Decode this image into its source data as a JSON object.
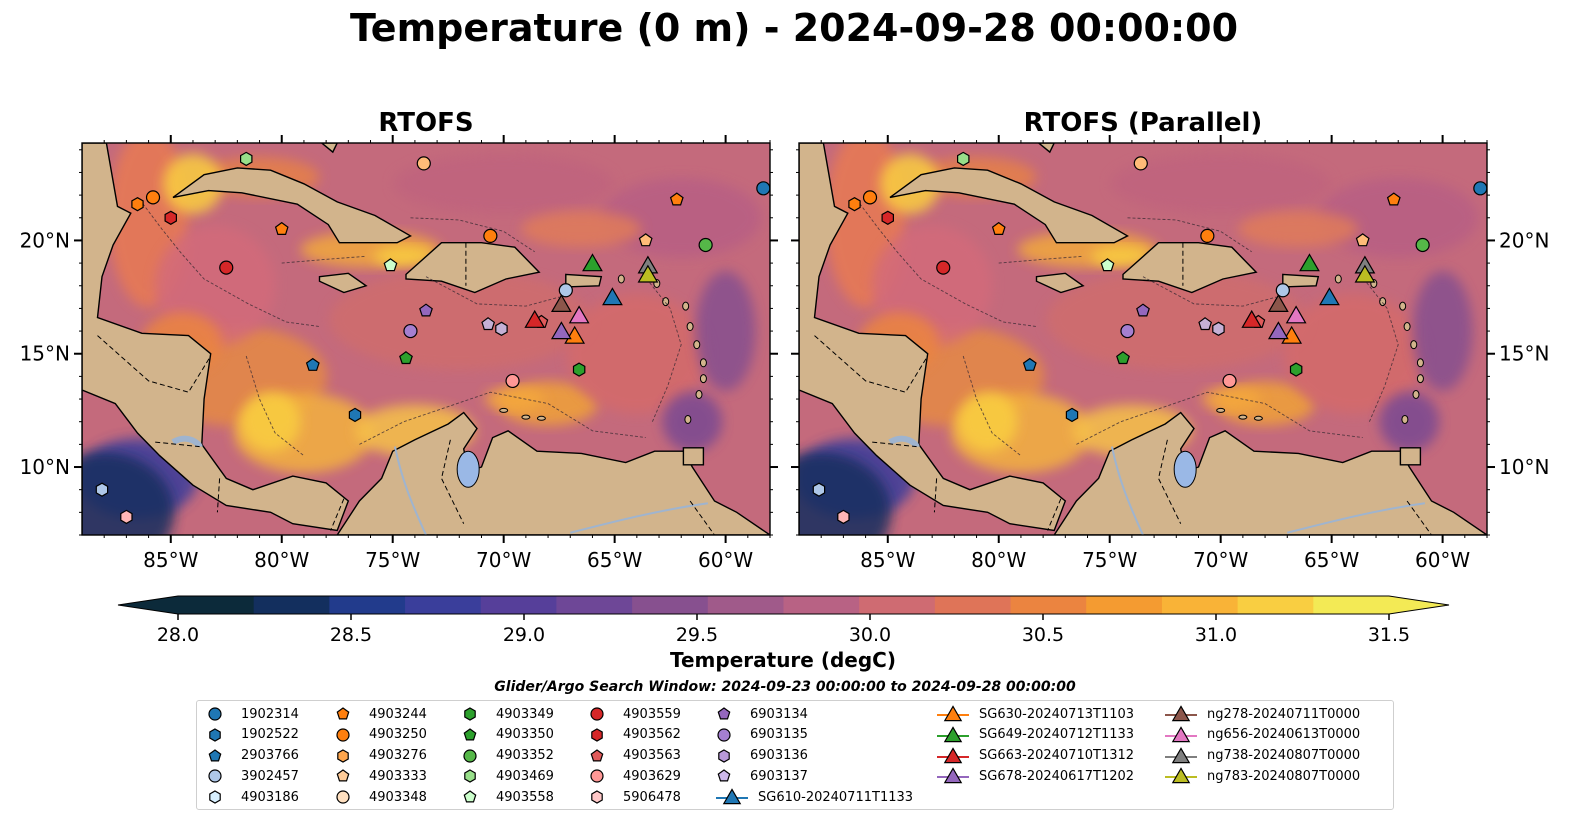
{
  "title": "Temperature (0 m) - 2024-09-28 00:00:00",
  "panels": [
    {
      "title": "RTOFS"
    },
    {
      "title": "RTOFS (Parallel)"
    }
  ],
  "colors": {
    "land": "#d2b48c",
    "lake": "#9ab8e6",
    "colormap": [
      "#0c2a3a",
      "#132f5e",
      "#223b8c",
      "#3a3e9b",
      "#563f9a",
      "#6e4797",
      "#87508f",
      "#a05a8a",
      "#b86284",
      "#cf6b72",
      "#df7458",
      "#eb8440",
      "#f49b31",
      "#f9b337",
      "#f9ce41",
      "#f3ea55"
    ]
  },
  "colorbar": {
    "label": "Temperature (degC)",
    "ticks": [
      "28.0",
      "28.5",
      "29.0",
      "29.5",
      "30.0",
      "30.5",
      "31.0",
      "31.5"
    ],
    "min": 28.0,
    "max": 31.5,
    "levels": 16,
    "extend": "both"
  },
  "search_window": "Glider/Argo Search Window: 2024-09-23 00:00:00 to 2024-09-28 00:00:00",
  "axes": {
    "x_ticks": [
      "85°W",
      "80°W",
      "75°W",
      "70°W",
      "65°W",
      "60°W"
    ],
    "y_ticks": [
      "20°N",
      "15°N",
      "10°N"
    ]
  },
  "chart_data": {
    "type": "scatter",
    "x_label": "",
    "y_label": "",
    "x_range": [
      -89,
      -58
    ],
    "y_range": [
      7,
      24.3
    ],
    "x_tick_values": [
      -85,
      -80,
      -75,
      -70,
      -65,
      -60
    ],
    "y_tick_values": [
      20,
      15,
      10
    ],
    "grid": false,
    "legend_position": "bottom",
    "argo_floats": [
      {
        "id": "1902314",
        "marker": "circle",
        "color": "#1f77b4",
        "lon": -58.3,
        "lat": 22.3
      },
      {
        "id": "1902522",
        "marker": "hexagon",
        "color": "#1f77b4",
        "lon": -76.7,
        "lat": 12.3
      },
      {
        "id": "2903766",
        "marker": "pentagon",
        "color": "#1f77b4",
        "lon": -78.6,
        "lat": 14.5
      },
      {
        "id": "3902457",
        "marker": "circle",
        "color": "#aec7e8",
        "lon": -67.2,
        "lat": 17.8
      },
      {
        "id": "4903186",
        "marker": "hexagon",
        "color": "#aec7e8",
        "lon": -88.1,
        "lat": 9.0
      },
      {
        "id": "4903244",
        "marker": "pentagon",
        "color": "#ff7f0e",
        "lon": -62.2,
        "lat": 21.8
      },
      {
        "id": "4903250",
        "marker": "circle",
        "color": "#ff7f0e",
        "lon": -85.8,
        "lat": 21.9
      },
      {
        "id": "4903276",
        "marker": "hexagon",
        "color": "#ff7f0e",
        "lon": -86.5,
        "lat": 21.6
      },
      {
        "id": "4903333",
        "marker": "pentagon",
        "color": "#ffbb78",
        "lon": -63.6,
        "lat": 20.0
      },
      {
        "id": "4903348",
        "marker": "circle",
        "color": "#ffbb78",
        "lon": -73.6,
        "lat": 23.4
      },
      {
        "id": "4903349",
        "marker": "hexagon",
        "color": "#2ca02c",
        "lon": -66.6,
        "lat": 14.3
      },
      {
        "id": "4903350",
        "marker": "pentagon",
        "color": "#2ca02c",
        "lon": -74.4,
        "lat": 14.8
      },
      {
        "id": "4903352",
        "marker": "circle",
        "color": "#55b748",
        "lon": -60.9,
        "lat": 19.8
      },
      {
        "id": "4903469",
        "marker": "hexagon",
        "color": "#98df8a",
        "lon": -81.6,
        "lat": 23.6
      },
      {
        "id": "4903558",
        "marker": "pentagon",
        "color": "#ccffcc",
        "lon": -75.1,
        "lat": 18.9
      },
      {
        "id": "4903559",
        "marker": "circle",
        "color": "#d62728",
        "lon": -82.5,
        "lat": 18.8
      },
      {
        "id": "4903562",
        "marker": "hexagon",
        "color": "#d62728",
        "lon": -85.0,
        "lat": 21.0
      },
      {
        "id": "4903563",
        "marker": "pentagon",
        "color": "#e05a5a",
        "lon": -68.3,
        "lat": 16.4
      },
      {
        "id": "4903629",
        "marker": "circle",
        "color": "#ff9896",
        "lon": -69.6,
        "lat": 13.8
      },
      {
        "id": "5906478",
        "marker": "hexagon",
        "color": "#ffb6b6",
        "lon": -87.0,
        "lat": 7.8
      },
      {
        "id": "6903134",
        "marker": "pentagon",
        "color": "#9467bd",
        "lon": -73.5,
        "lat": 16.9
      },
      {
        "id": "6903135",
        "marker": "circle",
        "color": "#a57fd0",
        "lon": -74.2,
        "lat": 16.0
      },
      {
        "id": "6903136",
        "marker": "hexagon",
        "color": "#c5b0d5",
        "lon": -70.1,
        "lat": 16.1
      },
      {
        "id": "6903137",
        "marker": "pentagon",
        "color": "#c5b0d5",
        "lon": -70.7,
        "lat": 16.3
      },
      {
        "id": "4903349b",
        "marker": "circle",
        "color": "#ff7f0e",
        "lon": -70.6,
        "lat": 20.2,
        "hidden_label": true
      },
      {
        "id": "4903244b",
        "marker": "pentagon",
        "color": "#ff7f0e",
        "lon": -80.0,
        "lat": 20.5,
        "hidden_label": true
      }
    ],
    "gliders": [
      {
        "id": "SG610-20240711T1133",
        "color": "#1f77b4",
        "lon": -65.1,
        "lat": 17.5
      },
      {
        "id": "SG630-20240713T1103",
        "color": "#ff7f0e",
        "lon": -66.8,
        "lat": 15.8
      },
      {
        "id": "SG649-20240712T1133",
        "color": "#2ca02c",
        "lon": -66.0,
        "lat": 19.0
      },
      {
        "id": "SG663-20240710T1312",
        "color": "#d62728",
        "lon": -68.6,
        "lat": 16.5
      },
      {
        "id": "SG678-20240617T1202",
        "color": "#9467bd",
        "lon": -67.4,
        "lat": 16.0
      },
      {
        "id": "ng278-20240711T0000",
        "color": "#8c564b",
        "lon": -67.4,
        "lat": 17.2
      },
      {
        "id": "ng656-20240613T0000",
        "color": "#e377c2",
        "lon": -66.6,
        "lat": 16.7
      },
      {
        "id": "ng738-20240807T0000",
        "color": "#7f7f7f",
        "lon": -63.5,
        "lat": 18.9
      },
      {
        "id": "ng783-20240807T0000",
        "color": "#bcbd22",
        "lon": -63.5,
        "lat": 18.5
      }
    ]
  },
  "legend": {
    "columns": [
      [
        {
          "label": "1902314",
          "marker": "circle",
          "color": "#1f77b4"
        },
        {
          "label": "1902522",
          "marker": "hexagon",
          "color": "#1f77b4"
        },
        {
          "label": "2903766",
          "marker": "pentagon",
          "color": "#1f77b4"
        },
        {
          "label": "3902457",
          "marker": "circle",
          "color": "#aec7e8"
        },
        {
          "label": "4903186",
          "marker": "hexagon",
          "color": "#d8f0ff"
        }
      ],
      [
        {
          "label": "4903244",
          "marker": "pentagon",
          "color": "#ff7f0e"
        },
        {
          "label": "4903250",
          "marker": "circle",
          "color": "#ff7f0e"
        },
        {
          "label": "4903276",
          "marker": "hexagon",
          "color": "#ffa64d"
        },
        {
          "label": "4903333",
          "marker": "pentagon",
          "color": "#ffcc99"
        },
        {
          "label": "4903348",
          "marker": "circle",
          "color": "#ffe0c0"
        }
      ],
      [
        {
          "label": "4903349",
          "marker": "hexagon",
          "color": "#2ca02c"
        },
        {
          "label": "4903350",
          "marker": "pentagon",
          "color": "#2ca02c"
        },
        {
          "label": "4903352",
          "marker": "circle",
          "color": "#55b748"
        },
        {
          "label": "4903469",
          "marker": "hexagon",
          "color": "#98df8a"
        },
        {
          "label": "4903558",
          "marker": "pentagon",
          "color": "#ccffcc"
        }
      ],
      [
        {
          "label": "4903559",
          "marker": "circle",
          "color": "#d62728"
        },
        {
          "label": "4903562",
          "marker": "hexagon",
          "color": "#d62728"
        },
        {
          "label": "4903563",
          "marker": "pentagon",
          "color": "#e05a5a"
        },
        {
          "label": "4903629",
          "marker": "circle",
          "color": "#ff9896"
        },
        {
          "label": "5906478",
          "marker": "hexagon",
          "color": "#ffc8c8"
        }
      ],
      [
        {
          "label": "6903134",
          "marker": "pentagon",
          "color": "#9467bd"
        },
        {
          "label": "6903135",
          "marker": "circle",
          "color": "#a57fd0"
        },
        {
          "label": "6903136",
          "marker": "hexagon",
          "color": "#b89ad8"
        },
        {
          "label": "6903137",
          "marker": "pentagon",
          "color": "#cdb8ea"
        },
        {
          "label": "SG610-20240711T1133",
          "marker": "triangle-line",
          "color": "#1f77b4"
        }
      ],
      [
        {
          "label": "SG630-20240713T1103",
          "marker": "triangle-line",
          "color": "#ff7f0e"
        },
        {
          "label": "SG649-20240712T1133",
          "marker": "triangle-line",
          "color": "#2ca02c"
        },
        {
          "label": "SG663-20240710T1312",
          "marker": "triangle-line",
          "color": "#d62728"
        },
        {
          "label": "SG678-20240617T1202",
          "marker": "triangle-line",
          "color": "#9467bd"
        }
      ],
      [
        {
          "label": "ng278-20240711T0000",
          "marker": "triangle-line",
          "color": "#8c564b"
        },
        {
          "label": "ng656-20240613T0000",
          "marker": "triangle-line",
          "color": "#e377c2"
        },
        {
          "label": "ng738-20240807T0000",
          "marker": "triangle-line",
          "color": "#7f7f7f"
        },
        {
          "label": "ng783-20240807T0000",
          "marker": "triangle-line",
          "color": "#bcbd22"
        }
      ]
    ]
  }
}
